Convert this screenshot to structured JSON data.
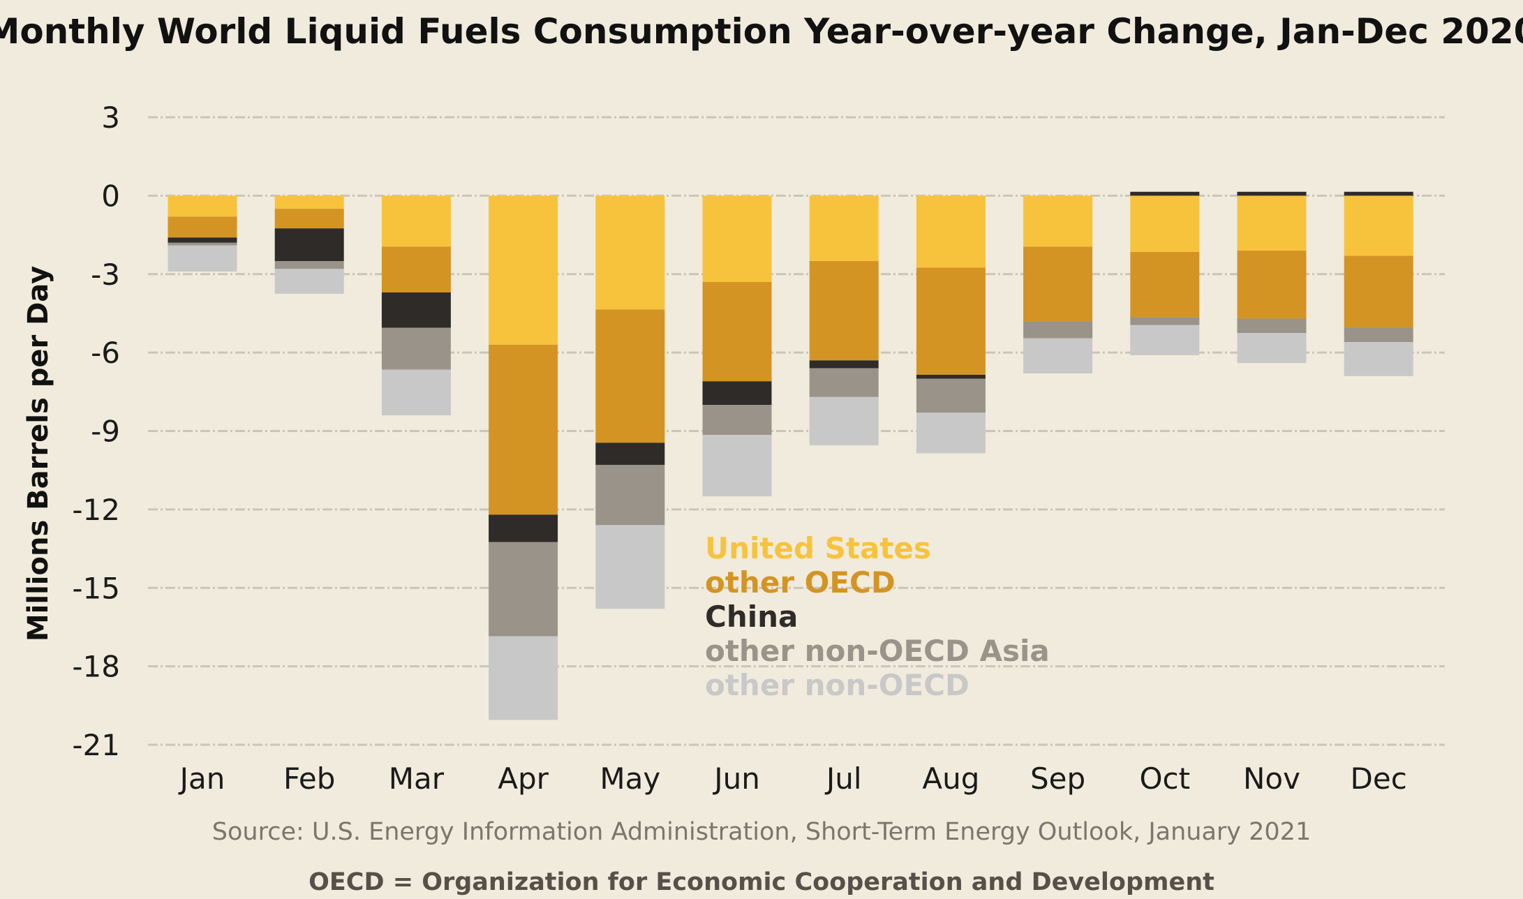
{
  "chart_data": {
    "type": "bar",
    "stacked": true,
    "title": "Monthly World Liquid Fuels Consumption Year-over-year Change,  Jan-Dec 2020",
    "ylabel": "Millions Barrels per Day",
    "xlabel": "",
    "ylim": [
      -21,
      3
    ],
    "yticks": [
      3,
      0,
      -3,
      -6,
      -9,
      -12,
      -15,
      -18,
      -21
    ],
    "grid": true,
    "legend_position": "inside-center",
    "categories": [
      "Jan",
      "Feb",
      "Mar",
      "Apr",
      "May",
      "Jun",
      "Jul",
      "Aug",
      "Sep",
      "Oct",
      "Nov",
      "Dec"
    ],
    "series": [
      {
        "name": "United States",
        "color": "#f8c33c",
        "values": [
          -0.8,
          -0.5,
          -1.95,
          -5.7,
          -4.35,
          -3.3,
          -2.5,
          -2.75,
          -1.95,
          -2.15,
          -2.1,
          -2.3
        ]
      },
      {
        "name": "other OECD",
        "color": "#d49424",
        "values": [
          -0.8,
          -0.75,
          -1.75,
          -6.5,
          -5.1,
          -3.8,
          -3.8,
          -4.1,
          -2.85,
          -2.5,
          -2.6,
          -2.75
        ]
      },
      {
        "name": "China",
        "color": "#2f2b28",
        "values": [
          -0.2,
          -1.25,
          -1.35,
          -1.05,
          -0.85,
          -0.9,
          -0.3,
          -0.15,
          0.0,
          0.15,
          0.15,
          0.15
        ]
      },
      {
        "name": "other non-OECD Asia",
        "color": "#999389",
        "values": [
          -0.1,
          -0.3,
          -1.6,
          -3.6,
          -2.3,
          -1.15,
          -1.1,
          -1.3,
          -0.65,
          -0.3,
          -0.55,
          -0.55
        ]
      },
      {
        "name": "other non-OECD",
        "color": "#c8c8c8",
        "values": [
          -1.0,
          -0.95,
          -1.75,
          -3.2,
          -3.2,
          -2.35,
          -1.85,
          -1.55,
          -1.35,
          -1.15,
          -1.15,
          -1.3
        ]
      }
    ]
  },
  "source": "Source: U.S. Energy Information Administration, Short-Term Energy Outlook, January 2021",
  "footnote": "OECD = Organization for Economic Cooperation and Development"
}
